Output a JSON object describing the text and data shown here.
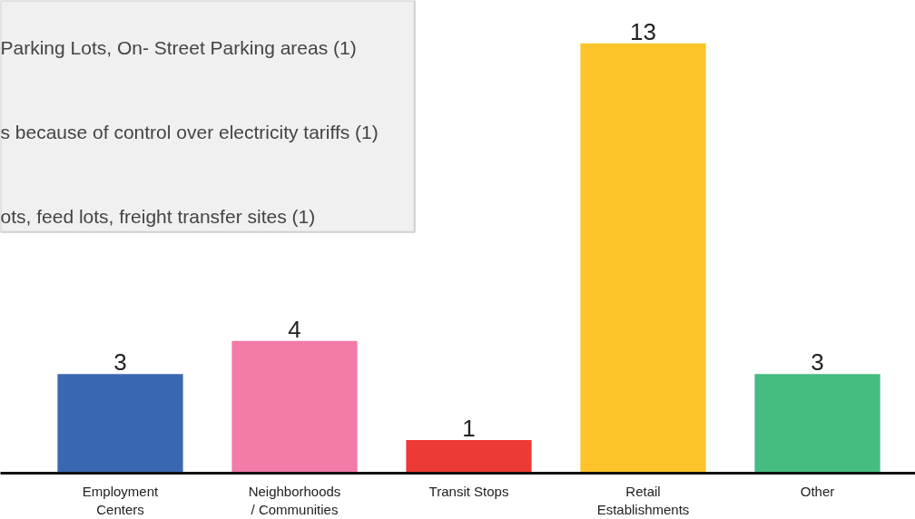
{
  "chart_data": {
    "type": "bar",
    "categories": [
      "Employment Centers",
      "Neighborhoods / Communities",
      "Transit Stops",
      "Retail Establishments",
      "Other"
    ],
    "values": [
      3,
      4,
      1,
      13,
      3
    ],
    "colors": [
      "#3a67b1",
      "#f27ba8",
      "#ee3a34",
      "#fdc42a",
      "#45bc81"
    ],
    "ylim": [
      0,
      14.3
    ],
    "tick_labels": "x",
    "data_labels": true,
    "grid": false,
    "annotations": [
      "Parking Lots, On- Street Parking areas (1)",
      "s because of control over electricity tariffs (1)",
      "ots, feed lots, freight transfer sites (1)"
    ]
  }
}
